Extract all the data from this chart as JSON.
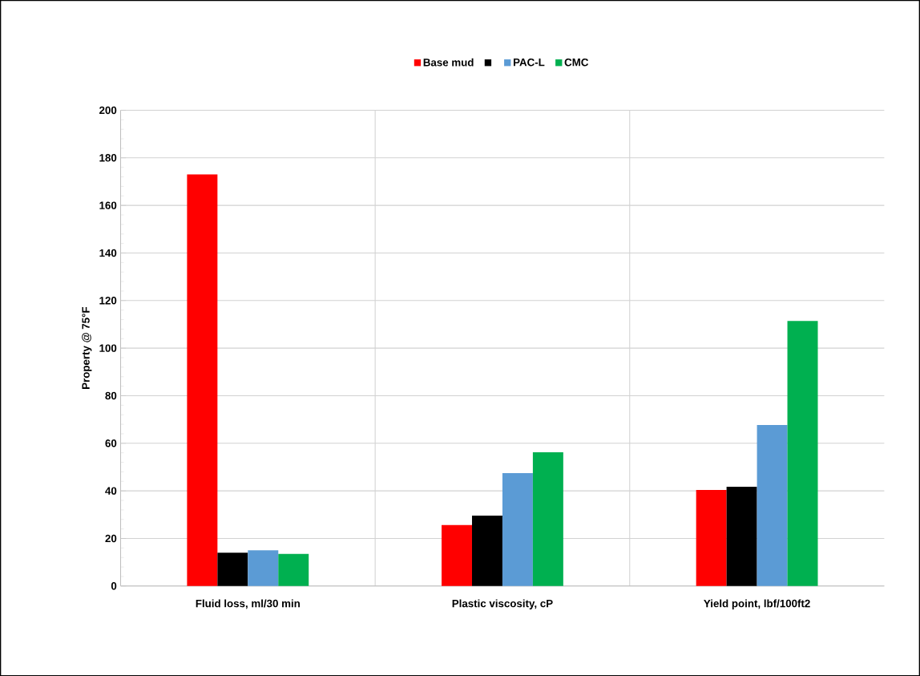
{
  "chart_data": {
    "type": "bar",
    "ylabel": "Property @ 75°F",
    "categories": [
      "Fluid loss, ml/30 min",
      "Plastic viscosity, cP",
      "Yield point, lbf/100ft2"
    ],
    "series": [
      {
        "name": "Base mud",
        "color": "#ff0000",
        "values": [
          173,
          25.6,
          40.4
        ]
      },
      {
        "color": "#000000",
        "values": [
          14,
          29.6,
          41.7
        ]
      },
      {
        "name": "PAC-L",
        "color": "#5b9bd5",
        "values": [
          15,
          47.5,
          67.7
        ]
      },
      {
        "name": "CMC",
        "color": "#00b050",
        "values": [
          13.5,
          56.2,
          111.4
        ]
      }
    ],
    "ylim": [
      0,
      200
    ],
    "yticks": [
      0,
      20,
      40,
      60,
      80,
      100,
      120,
      140,
      160,
      180,
      200
    ],
    "grid": true,
    "legend": "top"
  }
}
